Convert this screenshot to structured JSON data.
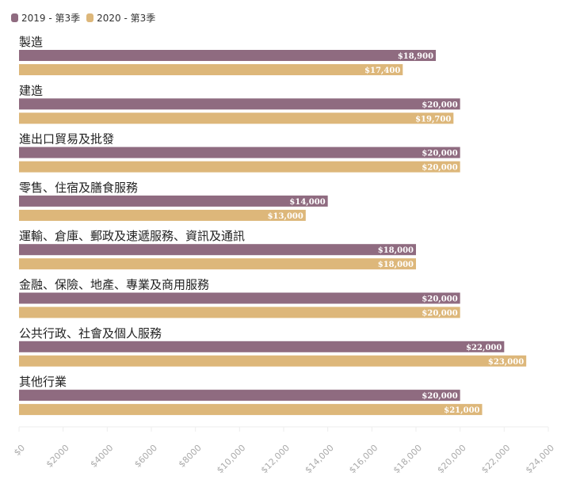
{
  "chart_data": {
    "type": "bar",
    "orientation": "horizontal",
    "categories": [
      "製造",
      "建造",
      "進出口貿易及批發",
      "零售、住宿及膳食服務",
      "運輸、倉庫、郵政及速遞服務、資訊及通訊",
      "金融、保險、地產、專業及商用服務",
      "公共行政、社會及個人服務",
      "其他行業"
    ],
    "series": [
      {
        "name": "2019 - 第3季",
        "color": "#8f6b80",
        "values": [
          18900,
          20000,
          20000,
          14000,
          18000,
          20000,
          22000,
          20000
        ],
        "labels": [
          "$18,900",
          "$20,000",
          "$20,000",
          "$14,000",
          "$18,000",
          "$20,000",
          "$22,000",
          "$20,000"
        ]
      },
      {
        "name": "2020 - 第3季",
        "color": "#ddb77a",
        "values": [
          17400,
          19700,
          20000,
          13000,
          18000,
          20000,
          23000,
          21000
        ],
        "labels": [
          "$17,400",
          "$19,700",
          "$20,000",
          "$13,000",
          "$18,000",
          "$20,000",
          "$23,000",
          "$21,000"
        ]
      }
    ],
    "xlim": [
      0,
      24000
    ],
    "xticks": [
      0,
      2000,
      4000,
      6000,
      8000,
      10000,
      12000,
      14000,
      16000,
      18000,
      20000,
      22000,
      24000
    ],
    "xtick_labels": [
      "$0",
      "$2000",
      "$4000",
      "$6000",
      "$8000",
      "$10,000",
      "$12,000",
      "$14,000",
      "$16,000",
      "$18,000",
      "$20,000",
      "$22,000",
      "$24,000"
    ],
    "legend": "top-left",
    "grid": false
  }
}
